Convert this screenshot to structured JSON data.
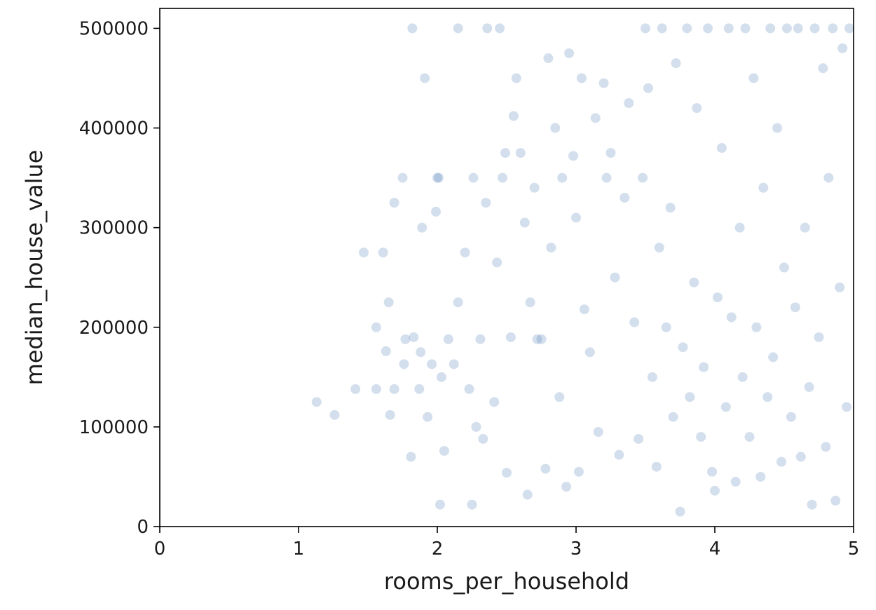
{
  "chart_data": {
    "type": "scatter",
    "title": "",
    "xlabel": "rooms_per_household",
    "ylabel": "median_house_value",
    "xlim": [
      0,
      5
    ],
    "ylim": [
      0,
      520000
    ],
    "xticks": [
      0,
      1,
      2,
      3,
      4,
      5
    ],
    "xtick_labels": [
      "0",
      "1",
      "2",
      "3",
      "4",
      "5"
    ],
    "yticks": [
      0,
      100000,
      200000,
      300000,
      400000,
      500000
    ],
    "ytick_labels": [
      "0",
      "100000",
      "200000",
      "300000",
      "400000",
      "500000"
    ],
    "grid": false,
    "legend": "none",
    "marker_color": "#3c6fae",
    "marker_alpha": 0.22,
    "points": [
      [
        1.13,
        125000
      ],
      [
        1.26,
        112000
      ],
      [
        1.41,
        138000
      ],
      [
        1.47,
        275000
      ],
      [
        1.56,
        138000
      ],
      [
        1.56,
        200000
      ],
      [
        1.61,
        275000
      ],
      [
        1.63,
        176000
      ],
      [
        1.65,
        225000
      ],
      [
        1.66,
        112000
      ],
      [
        1.69,
        138000
      ],
      [
        1.69,
        325000
      ],
      [
        1.75,
        350000
      ],
      [
        1.76,
        163000
      ],
      [
        1.77,
        188000
      ],
      [
        1.81,
        70000
      ],
      [
        1.82,
        500000
      ],
      [
        1.83,
        190000
      ],
      [
        1.87,
        138000
      ],
      [
        1.88,
        175000
      ],
      [
        1.89,
        300000
      ],
      [
        1.91,
        450000
      ],
      [
        1.93,
        110000
      ],
      [
        1.96,
        163000
      ],
      [
        1.99,
        316000
      ],
      [
        2.0,
        350000
      ],
      [
        2.01,
        350000
      ],
      [
        2.02,
        22000
      ],
      [
        2.03,
        150000
      ],
      [
        2.05,
        76000
      ],
      [
        2.08,
        188000
      ],
      [
        2.12,
        163000
      ],
      [
        2.15,
        500000
      ],
      [
        2.15,
        225000
      ],
      [
        2.2,
        275000
      ],
      [
        2.23,
        138000
      ],
      [
        2.25,
        22000
      ],
      [
        2.26,
        350000
      ],
      [
        2.28,
        100000
      ],
      [
        2.31,
        188000
      ],
      [
        2.33,
        88000
      ],
      [
        2.35,
        325000
      ],
      [
        2.36,
        500000
      ],
      [
        2.41,
        125000
      ],
      [
        2.43,
        265000
      ],
      [
        2.45,
        500000
      ],
      [
        2.47,
        350000
      ],
      [
        2.49,
        375000
      ],
      [
        2.5,
        54000
      ],
      [
        2.53,
        190000
      ],
      [
        2.55,
        412000
      ],
      [
        2.57,
        450000
      ],
      [
        2.6,
        375000
      ],
      [
        2.63,
        305000
      ],
      [
        2.65,
        32000
      ],
      [
        2.67,
        225000
      ],
      [
        2.7,
        340000
      ],
      [
        2.72,
        188000
      ],
      [
        2.75,
        188000
      ],
      [
        2.78,
        58000
      ],
      [
        2.8,
        470000
      ],
      [
        2.82,
        280000
      ],
      [
        2.85,
        400000
      ],
      [
        2.88,
        130000
      ],
      [
        2.9,
        350000
      ],
      [
        2.93,
        40000
      ],
      [
        2.95,
        475000
      ],
      [
        2.98,
        372000
      ],
      [
        3.0,
        310000
      ],
      [
        3.02,
        55000
      ],
      [
        3.04,
        450000
      ],
      [
        3.06,
        218000
      ],
      [
        3.1,
        175000
      ],
      [
        3.14,
        410000
      ],
      [
        3.16,
        95000
      ],
      [
        3.2,
        445000
      ],
      [
        3.22,
        350000
      ],
      [
        3.25,
        375000
      ],
      [
        3.28,
        250000
      ],
      [
        3.31,
        72000
      ],
      [
        3.35,
        330000
      ],
      [
        3.38,
        425000
      ],
      [
        3.42,
        205000
      ],
      [
        3.45,
        88000
      ],
      [
        3.48,
        350000
      ],
      [
        3.5,
        500000
      ],
      [
        3.52,
        440000
      ],
      [
        3.55,
        150000
      ],
      [
        3.58,
        60000
      ],
      [
        3.6,
        280000
      ],
      [
        3.62,
        500000
      ],
      [
        3.65,
        200000
      ],
      [
        3.68,
        320000
      ],
      [
        3.7,
        110000
      ],
      [
        3.72,
        465000
      ],
      [
        3.75,
        15000
      ],
      [
        3.77,
        180000
      ],
      [
        3.8,
        500000
      ],
      [
        3.82,
        130000
      ],
      [
        3.85,
        245000
      ],
      [
        3.87,
        420000
      ],
      [
        3.9,
        90000
      ],
      [
        3.92,
        160000
      ],
      [
        3.95,
        500000
      ],
      [
        3.98,
        55000
      ],
      [
        4.0,
        36000
      ],
      [
        4.02,
        230000
      ],
      [
        4.05,
        380000
      ],
      [
        4.08,
        120000
      ],
      [
        4.1,
        500000
      ],
      [
        4.12,
        210000
      ],
      [
        4.15,
        45000
      ],
      [
        4.18,
        300000
      ],
      [
        4.2,
        150000
      ],
      [
        4.22,
        500000
      ],
      [
        4.25,
        90000
      ],
      [
        4.28,
        450000
      ],
      [
        4.3,
        200000
      ],
      [
        4.33,
        50000
      ],
      [
        4.35,
        340000
      ],
      [
        4.38,
        130000
      ],
      [
        4.4,
        500000
      ],
      [
        4.42,
        170000
      ],
      [
        4.45,
        400000
      ],
      [
        4.48,
        65000
      ],
      [
        4.5,
        260000
      ],
      [
        4.52,
        500000
      ],
      [
        4.55,
        110000
      ],
      [
        4.58,
        220000
      ],
      [
        4.6,
        500000
      ],
      [
        4.62,
        70000
      ],
      [
        4.65,
        300000
      ],
      [
        4.68,
        140000
      ],
      [
        4.7,
        22000
      ],
      [
        4.72,
        500000
      ],
      [
        4.75,
        190000
      ],
      [
        4.78,
        460000
      ],
      [
        4.8,
        80000
      ],
      [
        4.82,
        350000
      ],
      [
        4.85,
        500000
      ],
      [
        4.87,
        26000
      ],
      [
        4.9,
        240000
      ],
      [
        4.92,
        480000
      ],
      [
        4.95,
        120000
      ],
      [
        4.97,
        500000
      ]
    ]
  }
}
